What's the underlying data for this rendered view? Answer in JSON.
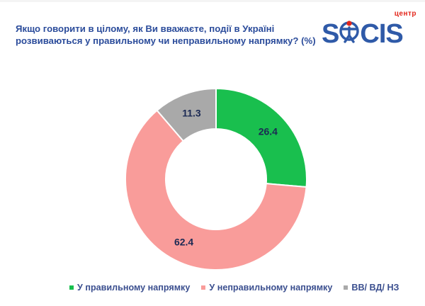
{
  "header": {
    "title": "Якщо говорити в цілому, як Ви вважаєте, події в Україні розвиваються у правильному чи неправильному напрямку? (%)"
  },
  "logo": {
    "small_text": "центр",
    "word_left": "S",
    "word_mid": "C",
    "word_right": "IS",
    "colors": {
      "word": "#2f5aa8",
      "small": "#e3261b"
    }
  },
  "chart_data": {
    "type": "pie",
    "variant": "donut",
    "title": "",
    "categories": [
      "У правильному напрямку",
      "У неправильному напрямку",
      "ВВ/ ВД/ НЗ"
    ],
    "values": [
      26.4,
      62.4,
      11.3
    ],
    "colors": [
      "#19bf4e",
      "#f99c9a",
      "#a9a9a9"
    ],
    "value_label_color": "#1c2a54",
    "legend_position": "bottom"
  }
}
